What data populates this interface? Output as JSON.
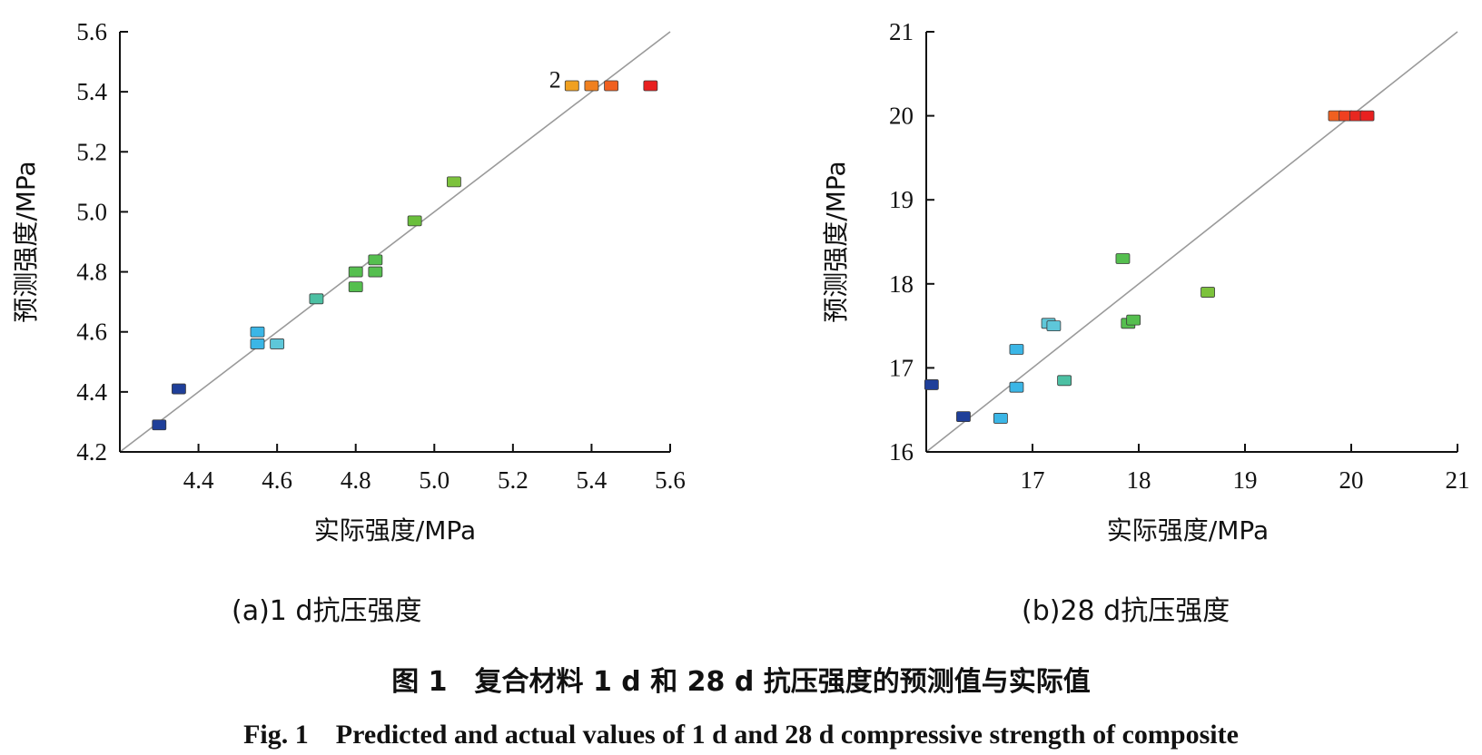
{
  "chart_data": [
    {
      "type": "scatter",
      "subcaption": "(a)1 d抗压强度",
      "xlabel": "实际强度/MPa",
      "ylabel": "预测强度/MPa",
      "xlim": [
        4.2,
        5.6
      ],
      "ylim": [
        4.2,
        5.6
      ],
      "xticks": [
        4.4,
        4.6,
        4.8,
        5.0,
        5.2,
        5.4,
        5.6
      ],
      "yticks": [
        4.2,
        4.4,
        4.6,
        4.8,
        5.0,
        5.2,
        5.4,
        5.6
      ],
      "reference_line": "y = x",
      "grid": false,
      "points": [
        {
          "x": 4.3,
          "y": 4.29,
          "color": "#1f3f99"
        },
        {
          "x": 4.35,
          "y": 4.41,
          "color": "#1f3f99"
        },
        {
          "x": 4.55,
          "y": 4.6,
          "color": "#3bb6e6"
        },
        {
          "x": 4.55,
          "y": 4.56,
          "color": "#3bb6e6"
        },
        {
          "x": 4.6,
          "y": 4.56,
          "color": "#5ec7d9"
        },
        {
          "x": 4.7,
          "y": 4.71,
          "color": "#4cc0a3"
        },
        {
          "x": 4.8,
          "y": 4.8,
          "color": "#55bf4f"
        },
        {
          "x": 4.8,
          "y": 4.75,
          "color": "#55bf4f"
        },
        {
          "x": 4.85,
          "y": 4.84,
          "color": "#55bf4f"
        },
        {
          "x": 4.85,
          "y": 4.8,
          "color": "#55bf4f"
        },
        {
          "x": 4.95,
          "y": 4.97,
          "color": "#6abf3c"
        },
        {
          "x": 5.05,
          "y": 5.1,
          "color": "#7cc23c"
        },
        {
          "x": 5.35,
          "y": 5.42,
          "color": "#f0a020",
          "label": "2"
        },
        {
          "x": 5.4,
          "y": 5.42,
          "color": "#f08020"
        },
        {
          "x": 5.45,
          "y": 5.42,
          "color": "#f06020"
        },
        {
          "x": 5.55,
          "y": 5.42,
          "color": "#e82020"
        }
      ]
    },
    {
      "type": "scatter",
      "subcaption": "(b)28 d抗压强度",
      "xlabel": "实际强度/MPa",
      "ylabel": "预测强度/MPa",
      "xlim": [
        16,
        21
      ],
      "ylim": [
        16,
        21
      ],
      "xticks": [
        17,
        18,
        19,
        20,
        21
      ],
      "yticks": [
        16,
        17,
        18,
        19,
        20,
        21
      ],
      "reference_line": "y = x",
      "grid": false,
      "points": [
        {
          "x": 16.05,
          "y": 16.8,
          "color": "#1f3f99"
        },
        {
          "x": 16.35,
          "y": 16.42,
          "color": "#1f3f99"
        },
        {
          "x": 16.7,
          "y": 16.4,
          "color": "#3bb6e6"
        },
        {
          "x": 16.85,
          "y": 17.22,
          "color": "#3bb6e6"
        },
        {
          "x": 16.85,
          "y": 16.77,
          "color": "#3bb6e6"
        },
        {
          "x": 17.15,
          "y": 17.53,
          "color": "#5ec7d9"
        },
        {
          "x": 17.2,
          "y": 17.5,
          "color": "#5ec7d9"
        },
        {
          "x": 17.3,
          "y": 16.85,
          "color": "#4cc0a3"
        },
        {
          "x": 17.85,
          "y": 18.3,
          "color": "#55bf4f"
        },
        {
          "x": 17.9,
          "y": 17.53,
          "color": "#55bf4f"
        },
        {
          "x": 17.95,
          "y": 17.57,
          "color": "#55bf4f"
        },
        {
          "x": 18.65,
          "y": 17.9,
          "color": "#7cc23c"
        },
        {
          "x": 19.85,
          "y": 20.0,
          "color": "#f06020"
        },
        {
          "x": 19.95,
          "y": 20.0,
          "color": "#f04020"
        },
        {
          "x": 20.05,
          "y": 20.0,
          "color": "#e82820"
        },
        {
          "x": 20.15,
          "y": 20.0,
          "color": "#e82020"
        }
      ]
    }
  ],
  "figure_title_cn": "图 1　复合材料 1 d 和 28 d 抗压强度的预测值与实际值",
  "figure_title_en": "Fig. 1　Predicted and actual values of 1 d and 28 d compressive strength of composite"
}
